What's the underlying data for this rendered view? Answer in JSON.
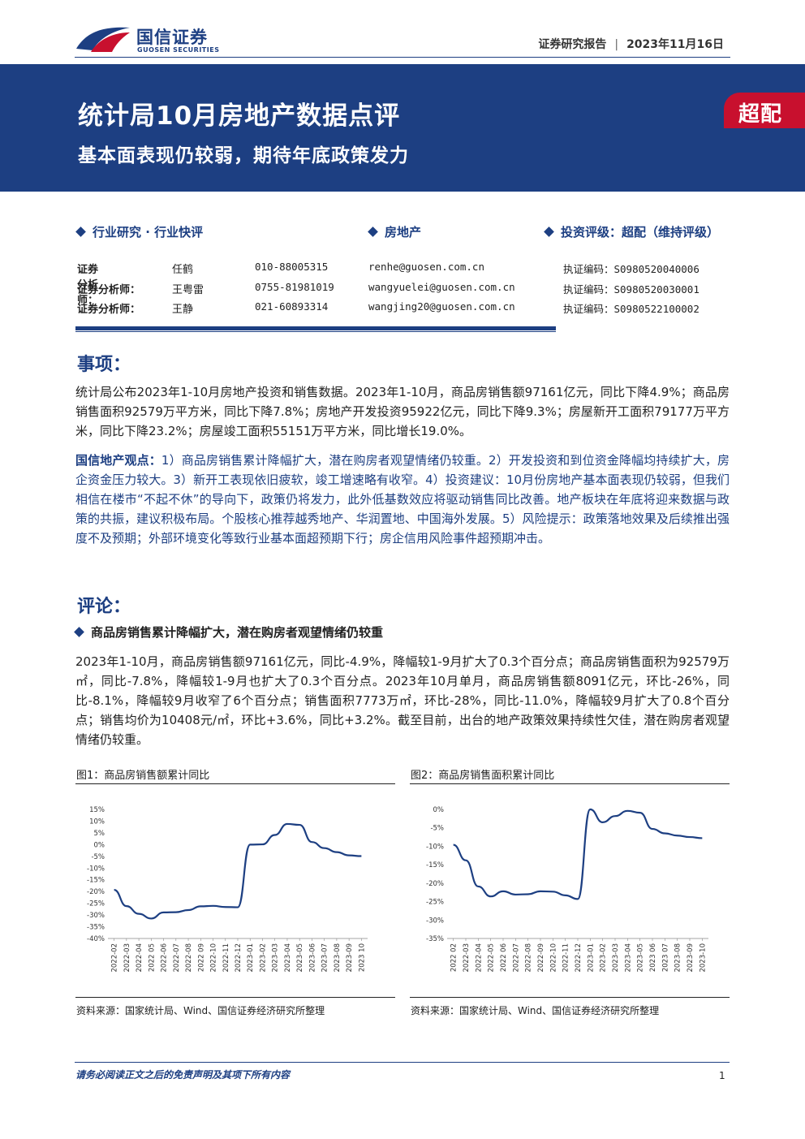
{
  "header": {
    "brand_cn": "国信证券",
    "brand_en": "GUOSEN SECURITIES",
    "report_type": "证券研究报告",
    "date": "2023年11月16日"
  },
  "banner": {
    "title": "统计局10月房地产数据点评",
    "subtitle": "基本面表现仍较弱，期待年底政策发力",
    "rating": "超配"
  },
  "meta": {
    "category": "行业研究 · 行业快评",
    "industry": "房地产",
    "investment_rating": "投资评级：超配（维持评级）"
  },
  "analysts": [
    {
      "label": "证券分析师：",
      "name": "任鹤",
      "phone": "010-88005315",
      "email": "renhe@guosen.com.cn",
      "cert": "执证编码：S0980520040006"
    },
    {
      "label": "证券分析师：",
      "name": "王粤雷",
      "phone": "0755-81981019",
      "email": "wangyuelei@guosen.com.cn",
      "cert": "执证编码：S0980520030001"
    },
    {
      "label": "证券分析师：",
      "name": "王静",
      "phone": "021-60893314",
      "email": "wangjing20@guosen.com.cn",
      "cert": "执证编码：S0980522100002"
    }
  ],
  "events": {
    "heading": "事项：",
    "text": "统计局公布2023年1-10月房地产投资和销售数据。2023年1-10月，商品房销售额97161亿元，同比下降4.9%；商品房销售面积92579万平方米，同比下降7.8%；房地产开发投资95922亿元，同比下降9.3%；房屋新开工面积79177万平方米，同比下降23.2%；房屋竣工面积55151万平方米，同比增长19.0%。",
    "view_label": "国信地产观点：",
    "view_text": "1）商品房销售累计降幅扩大，潜在购房者观望情绪仍较重。2）开发投资和到位资金降幅均持续扩大，房企资金压力较大。3）新开工表现依旧疲软，竣工增速略有收窄。4）投资建议：10月份房地产基本面表现仍较弱，但我们相信在楼市“不起不休”的导向下，政策仍将发力，此外低基数效应将驱动销售同比改善。地产板块在年底将迎来数据与政策的共振，建议积极布局。个股核心推荐越秀地产、华润置地、中国海外发展。5）风险提示：政策落地效果及后续推出强度不及预期；外部环境变化等致行业基本面超预期下行；房企信用风险事件超预期冲击。"
  },
  "comments": {
    "heading": "评论：",
    "bullet": "商品房销售累计降幅扩大，潜在购房者观望情绪仍较重",
    "text": "2023年1-10月，商品房销售额97161亿元，同比-4.9%，降幅较1-9月扩大了0.3个百分点；商品房销售面积为92579万㎡，同比-7.8%，降幅较1-9月也扩大了0.3个百分点。2023年10月单月，商品房销售额8091亿元，环比-26%，同比-8.1%，降幅较9月收窄了6个百分点；销售面积7773万㎡，环比-28%，同比-11.0%，降幅较9月扩大了0.8个百分点；销售均价为10408元/㎡，环比+3.6%，同比+3.2%。截至目前，出台的地产政策效果持续性欠佳，潜在购房者观望情绪仍较重。"
  },
  "figures": {
    "fig1_title": "图1：商品房销售额累计同比",
    "fig2_title": "图2：商品房销售面积累计同比",
    "fig1_source": "资料来源：国家统计局、Wind、国信证券经济研究所整理",
    "fig2_source": "资料来源：国家统计局、Wind、国信证券经济研究所整理"
  },
  "chart_data": [
    {
      "type": "line",
      "x": [
        "2022-02",
        "2022-03",
        "2022-04",
        "2022-05",
        "2022-06",
        "2022-07",
        "2022-08",
        "2022-09",
        "2022-10",
        "2022-11",
        "2022-12",
        "2023-01",
        "2023-02",
        "2023-03",
        "2023-04",
        "2023-05",
        "2023-06",
        "2023-07",
        "2023-08",
        "2023-09",
        "2023-10"
      ],
      "xtick_labels": [
        "2022-02",
        "2022-03",
        "2022-04",
        "2022-05",
        "2022-06",
        "2022-07",
        "2022-08",
        "2022-09",
        "2022-10",
        "2022-11",
        "2022-12",
        "2023-01",
        "2023-02",
        "2023-03",
        "2023-04",
        "2023-05",
        "2023-06",
        "2023-07",
        "2023-08",
        "2023-09",
        "2023-10"
      ],
      "xtick_display": [
        "2022-02",
        "2022-03",
        "2022-04",
        "2022 05",
        "2022-06",
        "2022-07",
        "2022-08",
        "2022 09",
        "2022-10",
        "2022-11",
        "2022-12",
        "2023-01",
        "2023-02",
        "2023-03",
        "2023-04",
        "2023-05",
        "2023-06",
        "2023-07",
        "2023-08",
        "2023-09",
        "2023 10"
      ],
      "series": [
        {
          "values": [
            -19.3,
            -26.2,
            -29.5,
            -31.5,
            -28.9,
            -28.8,
            -27.9,
            -26.3,
            -26.1,
            -26.6,
            -26.7,
            0.0,
            0.1,
            4.1,
            8.8,
            8.4,
            1.1,
            -1.5,
            -3.2,
            -4.6,
            -4.9
          ]
        }
      ],
      "yticks": [
        "15%",
        "10%",
        "5%",
        "0%",
        "-5%",
        "-10%",
        "-15%",
        "-20%",
        "-25%",
        "-30%",
        "-35%",
        "-40%"
      ],
      "ylim": [
        -40,
        15
      ],
      "color": "#1d3f82"
    },
    {
      "type": "line",
      "x": [
        "2022-02",
        "2022-03",
        "2022-04",
        "2022-05",
        "2022-06",
        "2022-07",
        "2022-08",
        "2022-09",
        "2022-10",
        "2022-11",
        "2022-12",
        "2023-01",
        "2023-02",
        "2023-03",
        "2023-04",
        "2023-05",
        "2023-06",
        "2023-07",
        "2023-08",
        "2023-09",
        "2023-10"
      ],
      "xtick_labels": [
        "2022-02",
        "2022-03",
        "2022-04",
        "2022-05",
        "2022-06",
        "2022-07",
        "2022-08",
        "2022-09",
        "2022-10",
        "2022-11",
        "2022-12",
        "2023-01",
        "2023-02",
        "2023-03",
        "2023-04",
        "2023-05",
        "2023-06",
        "2023-07",
        "2023-08",
        "2023-09",
        "2023-10"
      ],
      "xtick_display": [
        "2022 02",
        "2022-03",
        "2022-04",
        "2022-05",
        "2022 06",
        "2022-07",
        "2022-08",
        "2022-09",
        "2022-10",
        "2022-11",
        "2022-12",
        "2023-01",
        "2023-02",
        "2023-03",
        "2023-04",
        "2023-05",
        "2023 06",
        "2023 07",
        "2023-08",
        "2023-09",
        "2023-10"
      ],
      "series": [
        {
          "values": [
            -9.6,
            -13.8,
            -20.9,
            -23.6,
            -22.2,
            -23.1,
            -23.0,
            -22.2,
            -22.3,
            -23.3,
            -24.3,
            0.0,
            -3.5,
            -1.8,
            -0.4,
            -0.9,
            -5.3,
            -6.5,
            -7.1,
            -7.5,
            -7.8
          ]
        }
      ],
      "yticks": [
        "0%",
        "-5%",
        "-10%",
        "-15%",
        "-20%",
        "-25%",
        "-30%",
        "-35%"
      ],
      "ylim": [
        -35,
        0
      ],
      "color": "#1d3f82"
    }
  ],
  "footer": {
    "disclaimer": "请务必阅读正文之后的免责声明及其项下所有内容",
    "page": "1"
  }
}
